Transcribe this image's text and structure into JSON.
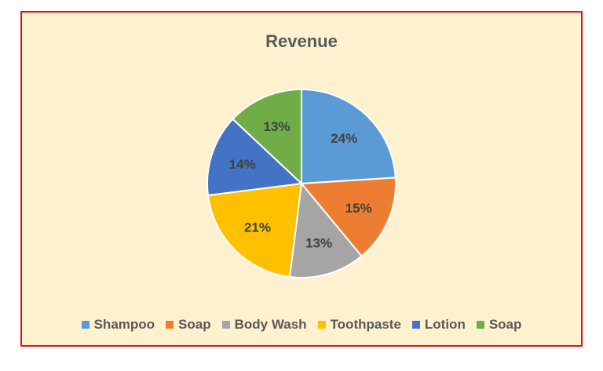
{
  "chart_data": {
    "type": "pie",
    "title": "Revenue",
    "categories": [
      "Shampoo",
      "Soap",
      "Body Wash",
      "Toothpaste",
      "Lotion",
      "Soap"
    ],
    "values": [
      24,
      15,
      13,
      21,
      14,
      13
    ],
    "data_labels": [
      "24%",
      "15%",
      "13%",
      "21%",
      "14%",
      "13%"
    ],
    "colors": [
      "#5b9bd5",
      "#ed7d31",
      "#a5a5a5",
      "#ffc000",
      "#4472c4",
      "#70ad47"
    ],
    "legend_position": "bottom",
    "background_color": "#fdf1cf",
    "border_color": "#e0141e"
  }
}
